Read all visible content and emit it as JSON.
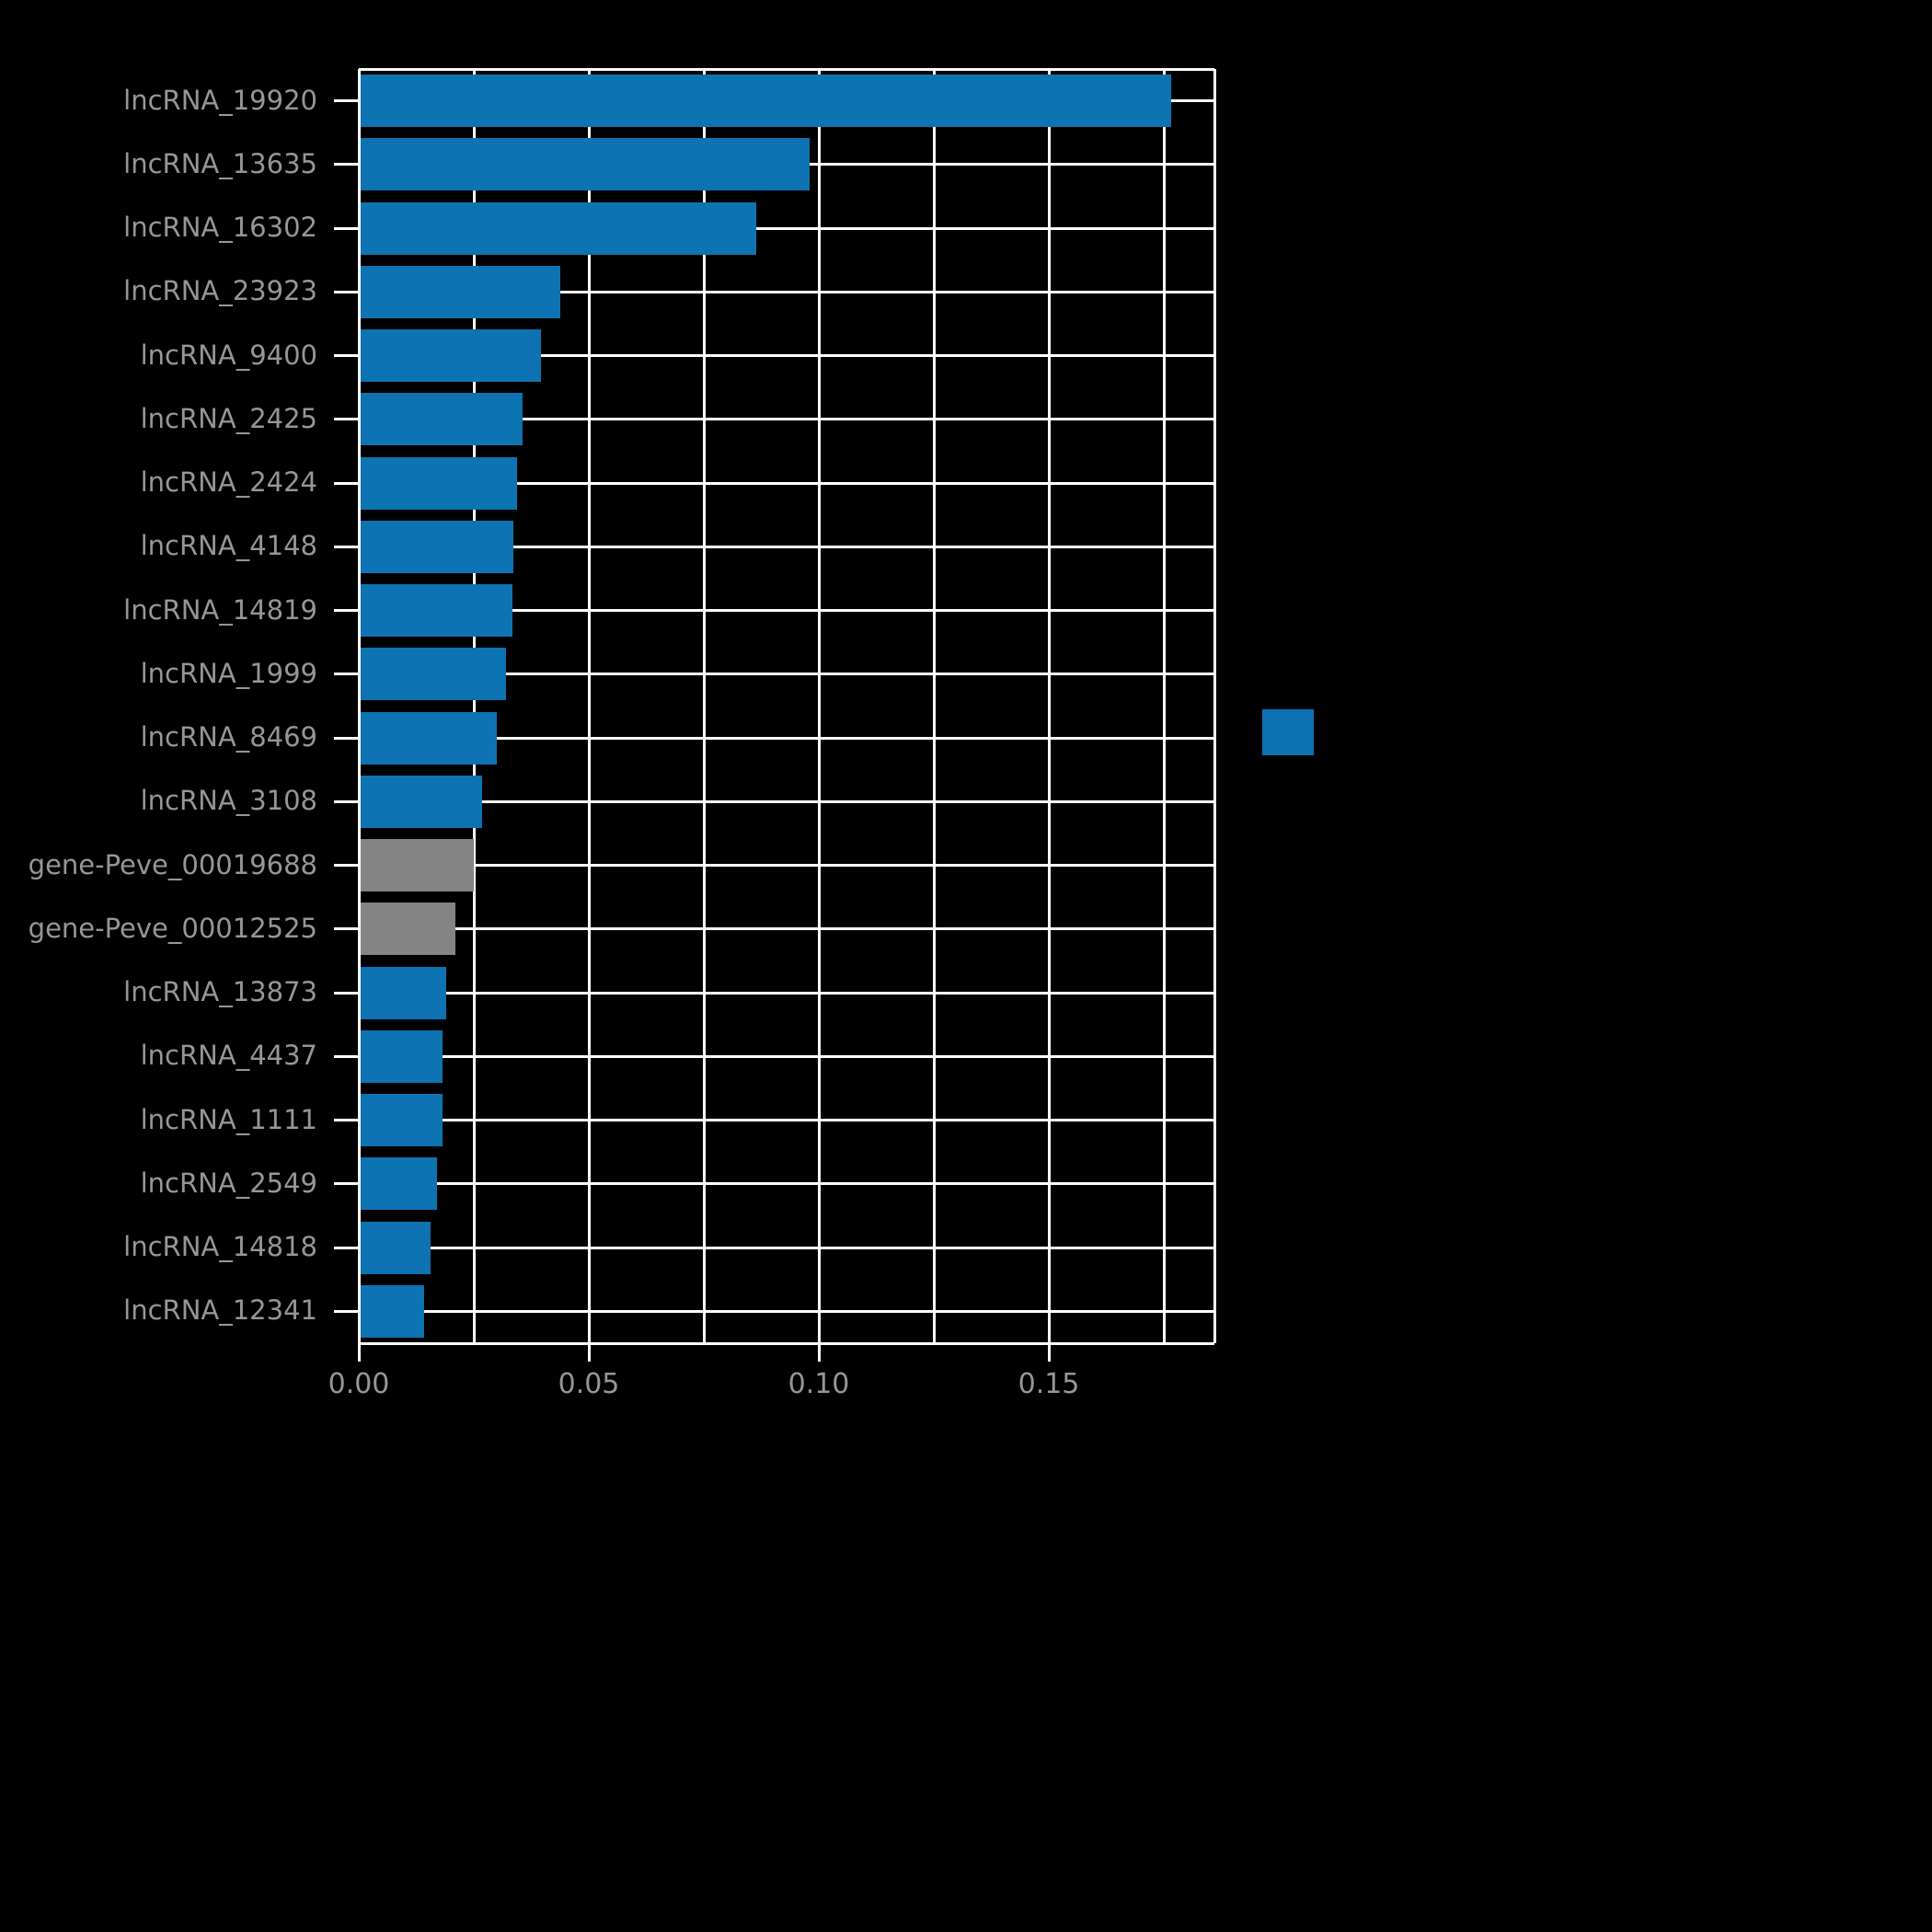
{
  "chart_data": {
    "type": "bar",
    "orientation": "horizontal",
    "title": "",
    "xlabel": "",
    "ylabel": "",
    "xlim": [
      0,
      0.186
    ],
    "xticks": [
      0.0,
      0.05,
      0.1,
      0.15
    ],
    "xtick_labels": [
      "0.00",
      "0.05",
      "0.10",
      "0.15"
    ],
    "grid_x_step": 0.025,
    "grid": true,
    "legend_position": "right",
    "categories": [
      "lncRNA_19920",
      "lncRNA_13635",
      "lncRNA_16302",
      "lncRNA_23923",
      "lncRNA_9400",
      "lncRNA_2425",
      "lncRNA_2424",
      "lncRNA_4148",
      "lncRNA_14819",
      "lncRNA_1999",
      "lncRNA_8469",
      "lncRNA_3108",
      "gene-Peve_00019688",
      "gene-Peve_00012525",
      "lncRNA_13873",
      "lncRNA_4437",
      "lncRNA_1111",
      "lncRNA_2549",
      "lncRNA_14818",
      "lncRNA_12341"
    ],
    "values": [
      0.1765,
      0.098,
      0.0863,
      0.0437,
      0.0395,
      0.0355,
      0.0344,
      0.0336,
      0.0333,
      0.032,
      0.0299,
      0.0268,
      0.025,
      0.021,
      0.019,
      0.0182,
      0.0182,
      0.017,
      0.0155,
      0.0142
    ],
    "bar_colors": [
      "#0e73b2",
      "#0e73b2",
      "#0e73b2",
      "#0e73b2",
      "#0e73b2",
      "#0e73b2",
      "#0e73b2",
      "#0e73b2",
      "#0e73b2",
      "#0e73b2",
      "#0e73b2",
      "#0e73b2",
      "#848484",
      "#848484",
      "#0e73b2",
      "#0e73b2",
      "#0e73b2",
      "#0e73b2",
      "#0e73b2",
      "#0e73b2"
    ],
    "colors": {
      "background": "#000000",
      "bar_blue": "#0e73b2",
      "bar_gray": "#848484",
      "grid": "#ffffff",
      "text": "#969696"
    },
    "legend": {
      "swatch_color": "#0e73b2",
      "label": ""
    }
  }
}
